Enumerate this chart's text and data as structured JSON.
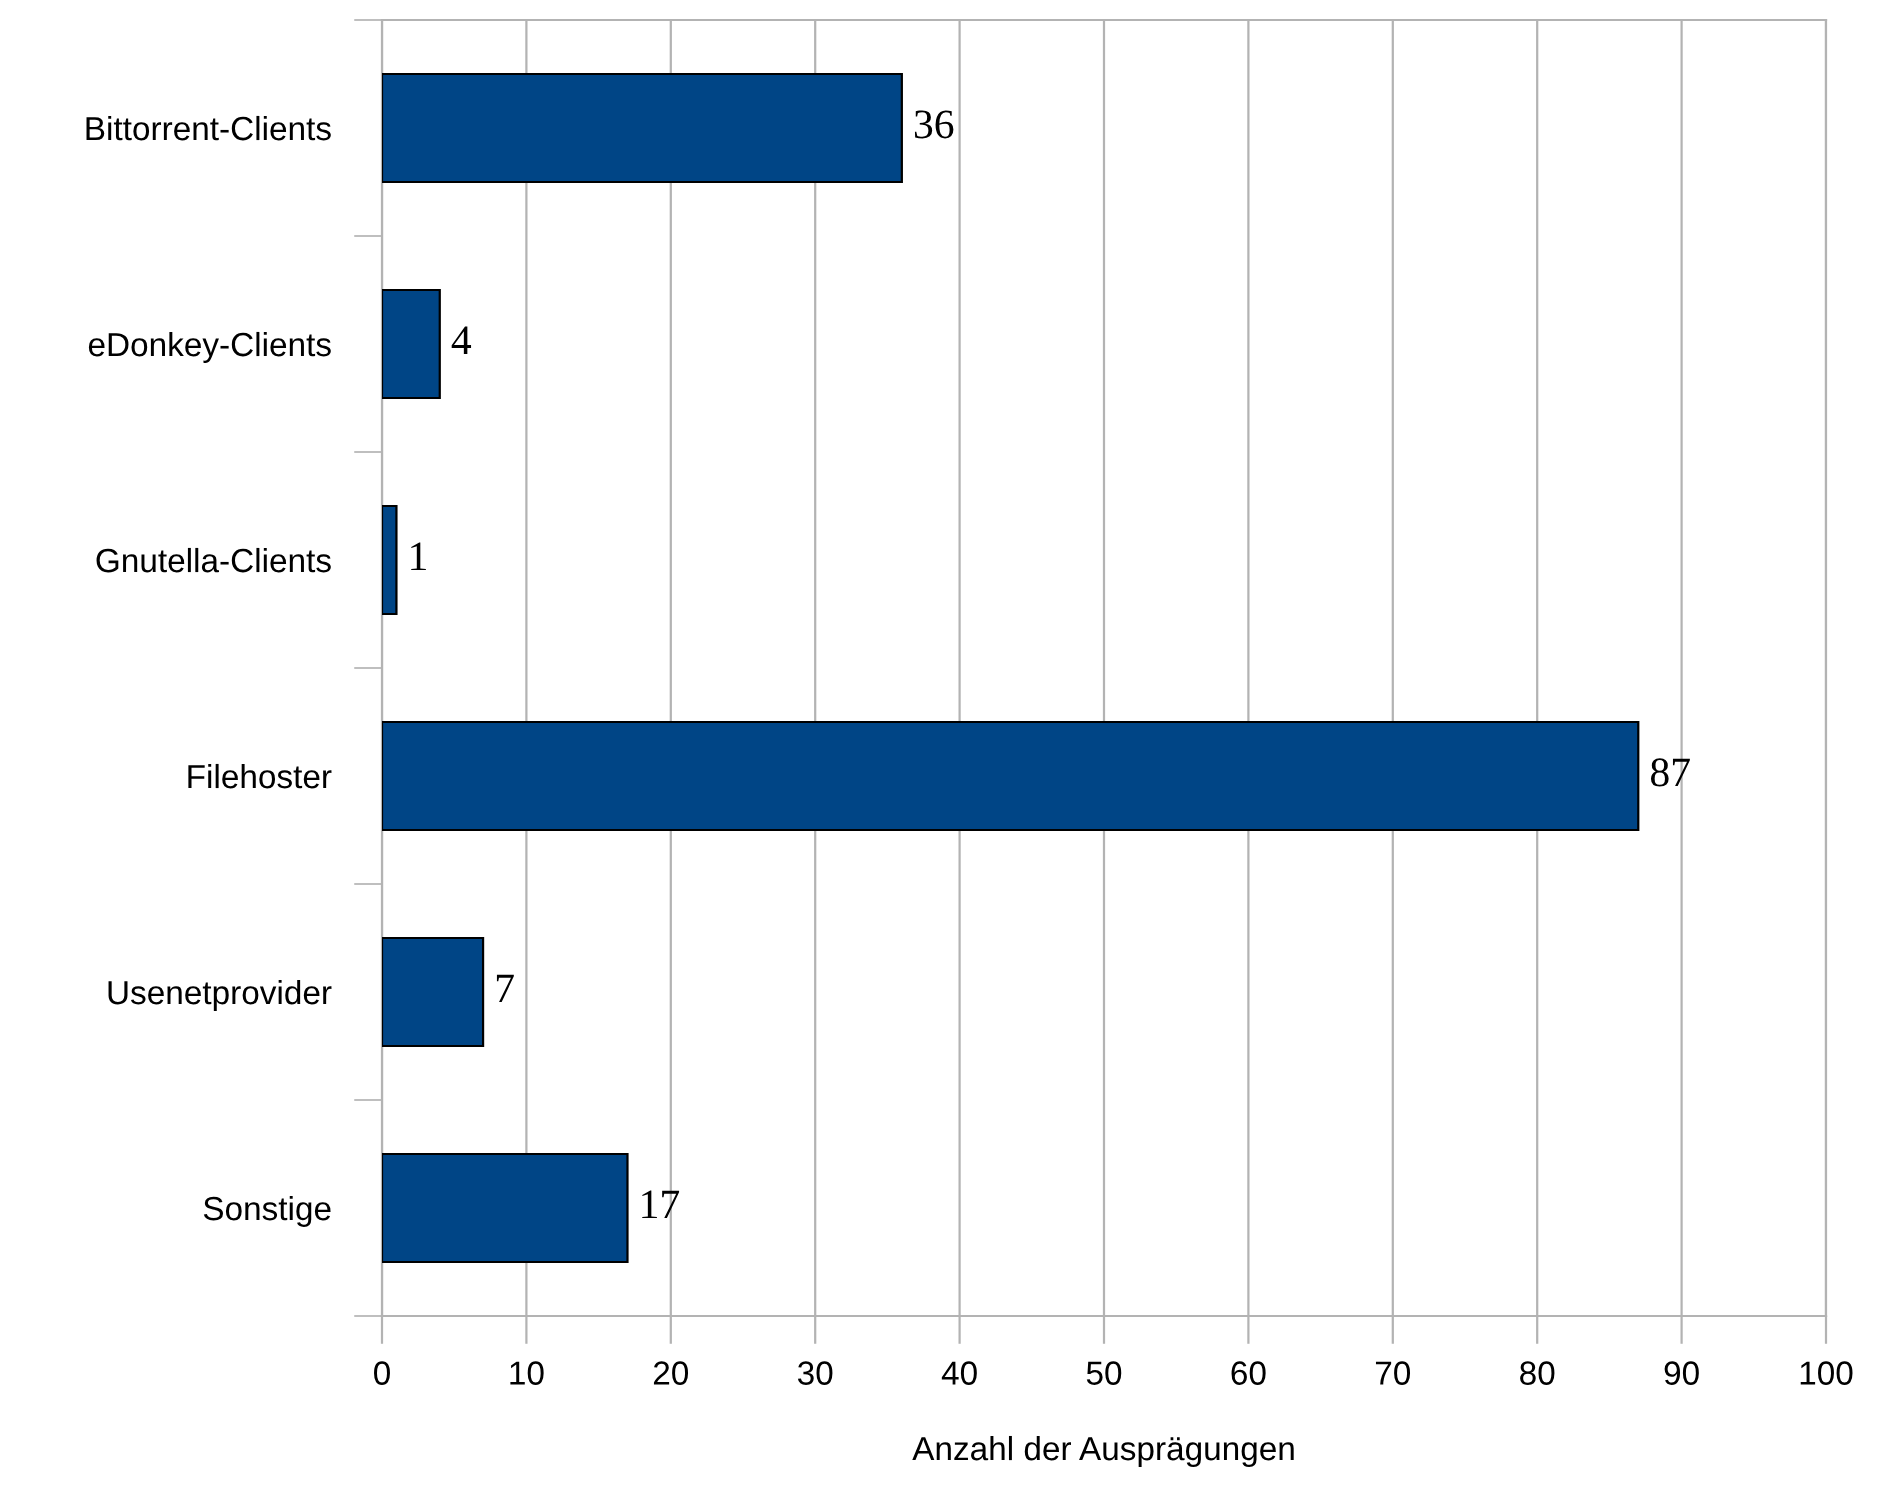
{
  "chart_data": {
    "type": "bar",
    "orientation": "horizontal",
    "xlabel": "Anzahl der Ausprägungen",
    "categories": [
      "Bittorrent-Clients",
      "eDonkey-Clients",
      "Gnutella-Clients",
      "Filehoster",
      "Usenetprovider",
      "Sonstige"
    ],
    "values": [
      36,
      4,
      1,
      87,
      7,
      17
    ],
    "color": "#004586",
    "data_labels": true,
    "xlim": [
      0,
      100
    ],
    "xticks": [
      0,
      10,
      20,
      30,
      40,
      50,
      60,
      70,
      80,
      90,
      100
    ],
    "grid": "x",
    "legend": false
  }
}
